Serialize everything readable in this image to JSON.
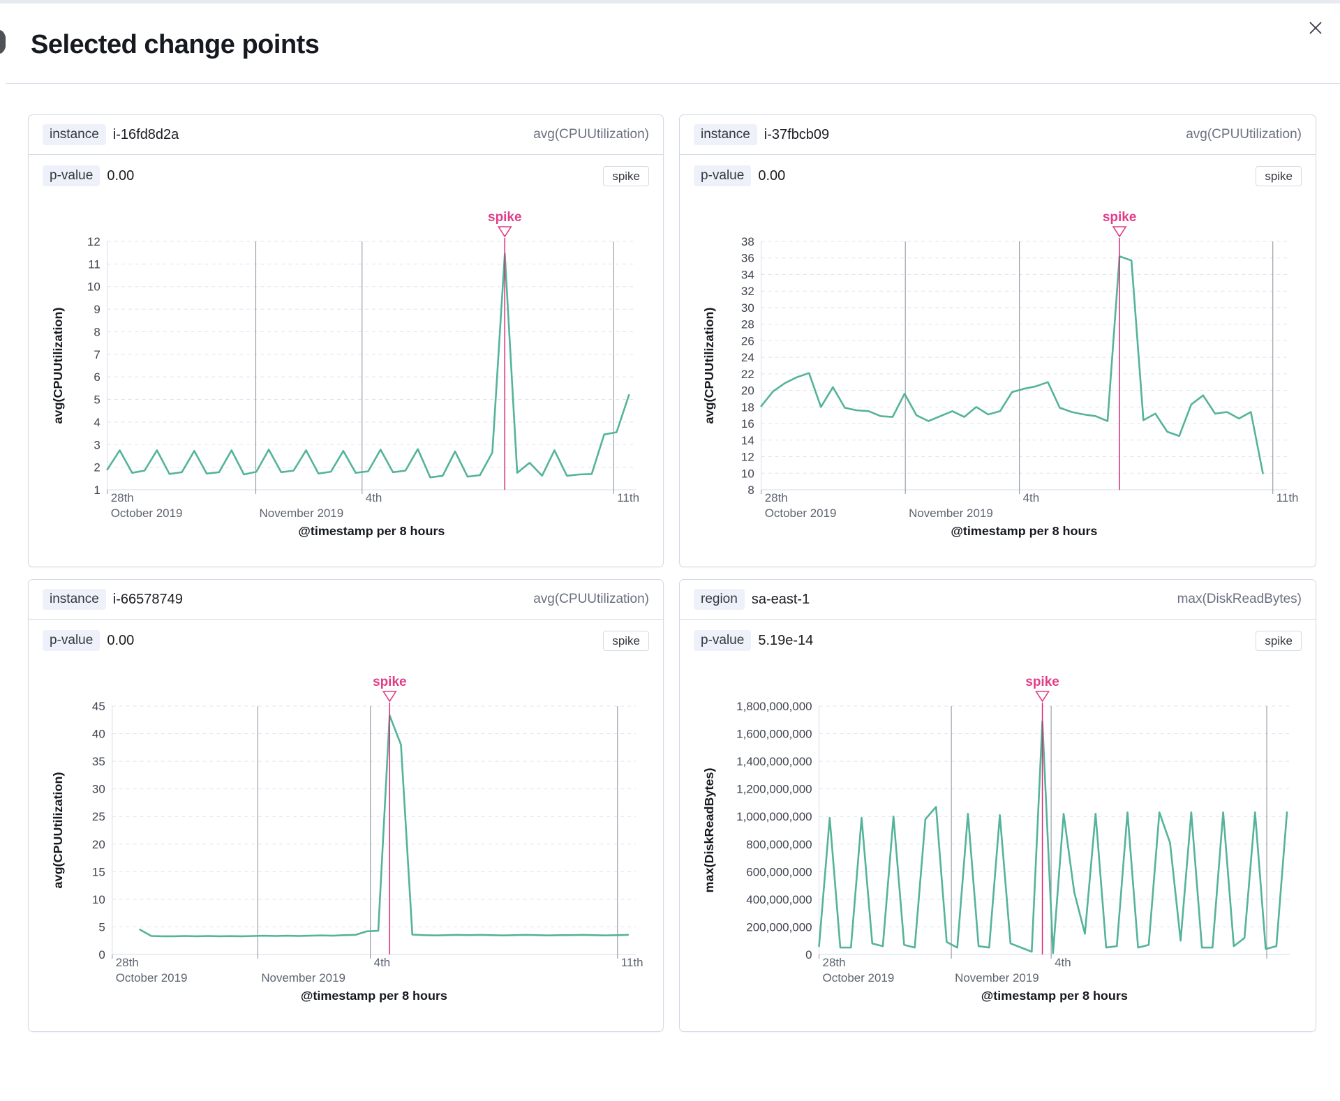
{
  "colors": {
    "series_green": "#54b399",
    "accent_pink": "#e13c88",
    "accent_line": "#dc2878",
    "grid_dashed": "#dde3ee",
    "grid_date": "#878e9a",
    "axis_line": "#d6dce8"
  },
  "modal": {
    "title": "Selected change points",
    "close_icon": "close-x"
  },
  "panels": [
    {
      "key_label": "instance",
      "key_value": "i-16fd8d2a",
      "metric": "avg(CPUUtilization)",
      "p_label": "p-value",
      "p_value": "0.00",
      "change_type": "spike",
      "chart_data": {
        "type": "line",
        "ylabel": "avg(CPUUtilization)",
        "xlabel": "@timestamp per 8 hours",
        "ylim": [
          1,
          12
        ],
        "yticks": [
          1,
          2,
          3,
          4,
          5,
          6,
          7,
          8,
          9,
          10,
          11,
          12
        ],
        "annotation": {
          "label": "spike",
          "index": 32
        },
        "line_span": [
          0,
          0.987
        ],
        "x_ticks": [
          {
            "frac": 0.0,
            "line1": "28th",
            "line2": "October 2019",
            "gridline": false
          },
          {
            "frac": 0.281,
            "line1": "",
            "line2": "November 2019",
            "gridline": true
          },
          {
            "frac": 0.482,
            "line1": "4th",
            "line2": "",
            "gridline": true
          },
          {
            "frac": 0.958,
            "line1": "11th",
            "line2": "",
            "gridline": true
          }
        ],
        "values": [
          1.9,
          2.75,
          1.75,
          1.85,
          2.75,
          1.7,
          1.78,
          2.72,
          1.72,
          1.78,
          2.75,
          1.68,
          1.8,
          2.78,
          1.78,
          1.85,
          2.75,
          1.72,
          1.8,
          2.72,
          1.75,
          1.82,
          2.78,
          1.78,
          1.85,
          2.8,
          1.55,
          1.62,
          2.7,
          1.58,
          1.65,
          2.65,
          11.45,
          1.75,
          2.2,
          1.62,
          2.75,
          1.62,
          1.68,
          1.7,
          3.45,
          3.55,
          5.2
        ]
      }
    },
    {
      "key_label": "instance",
      "key_value": "i-37fbcb09",
      "metric": "avg(CPUUtilization)",
      "p_label": "p-value",
      "p_value": "0.00",
      "change_type": "spike",
      "chart_data": {
        "type": "line",
        "ylabel": "avg(CPUUtilization)",
        "xlabel": "@timestamp per 8 hours",
        "ylim": [
          8,
          38
        ],
        "yticks": [
          8,
          10,
          12,
          14,
          16,
          18,
          20,
          22,
          24,
          26,
          28,
          30,
          32,
          34,
          36,
          38
        ],
        "annotation": {
          "label": "spike",
          "index": 30
        },
        "line_span": [
          0,
          0.954
        ],
        "x_ticks": [
          {
            "frac": 0.0,
            "line1": "28th",
            "line2": "October 2019",
            "gridline": false
          },
          {
            "frac": 0.274,
            "line1": "",
            "line2": "November 2019",
            "gridline": true
          },
          {
            "frac": 0.491,
            "line1": "4th",
            "line2": "",
            "gridline": true
          },
          {
            "frac": 0.973,
            "line1": "11th",
            "line2": "",
            "gridline": true
          }
        ],
        "values": [
          18.1,
          19.9,
          20.9,
          21.6,
          22.1,
          18.0,
          20.4,
          17.9,
          17.6,
          17.5,
          16.9,
          16.8,
          19.6,
          17.0,
          16.3,
          16.9,
          17.5,
          16.8,
          18.0,
          17.1,
          17.5,
          19.8,
          20.2,
          20.5,
          21.0,
          17.9,
          17.4,
          17.1,
          16.9,
          16.3,
          36.2,
          35.7,
          16.4,
          17.2,
          15.0,
          14.5,
          18.3,
          19.4,
          17.2,
          17.4,
          16.6,
          17.4,
          10.0
        ]
      }
    },
    {
      "key_label": "instance",
      "key_value": "i-66578749",
      "metric": "avg(CPUUtilization)",
      "p_label": "p-value",
      "p_value": "0.00",
      "change_type": "spike",
      "chart_data": {
        "type": "line",
        "ylabel": "avg(CPUUtilization)",
        "xlabel": "@timestamp per 8 hours",
        "ylim": [
          0,
          45
        ],
        "yticks": [
          0,
          5,
          10,
          15,
          20,
          25,
          30,
          35,
          40,
          45
        ],
        "annotation": {
          "label": "spike",
          "index": 22
        },
        "line_span": [
          0.053,
          0.985
        ],
        "x_ticks": [
          {
            "frac": 0.0,
            "line1": "28th",
            "line2": "October 2019",
            "gridline": false
          },
          {
            "frac": 0.278,
            "line1": "",
            "line2": "November 2019",
            "gridline": true
          },
          {
            "frac": 0.493,
            "line1": "4th",
            "line2": "",
            "gridline": true
          },
          {
            "frac": 0.965,
            "line1": "11th",
            "line2": "",
            "gridline": true
          }
        ],
        "values": [
          4.5,
          3.35,
          3.3,
          3.3,
          3.35,
          3.3,
          3.35,
          3.3,
          3.32,
          3.3,
          3.35,
          3.4,
          3.35,
          3.4,
          3.35,
          3.4,
          3.45,
          3.4,
          3.5,
          3.55,
          4.2,
          4.3,
          43.3,
          38.0,
          3.6,
          3.5,
          3.45,
          3.5,
          3.55,
          3.5,
          3.55,
          3.5,
          3.45,
          3.5,
          3.55,
          3.5,
          3.45,
          3.5,
          3.5,
          3.55,
          3.5,
          3.45,
          3.5,
          3.55
        ]
      }
    },
    {
      "key_label": "region",
      "key_value": "sa-east-1",
      "metric": "max(DiskReadBytes)",
      "p_label": "p-value",
      "p_value": "5.19e-14",
      "change_type": "spike",
      "chart_data": {
        "type": "line",
        "ylabel": "max(DiskReadBytes)",
        "xlabel": "@timestamp per 8 hours",
        "ylim": [
          0,
          1800000000
        ],
        "yticks": [
          0,
          200000000,
          400000000,
          600000000,
          800000000,
          1000000000,
          1200000000,
          1400000000,
          1600000000,
          1800000000
        ],
        "annotation": {
          "label": "spike",
          "index": 21
        },
        "line_span": [
          0,
          0.994
        ],
        "x_ticks": [
          {
            "frac": 0.0,
            "line1": "28th",
            "line2": "October 2019",
            "gridline": false
          },
          {
            "frac": 0.281,
            "line1": "",
            "line2": "November 2019",
            "gridline": true
          },
          {
            "frac": 0.493,
            "line1": "4th",
            "line2": "",
            "gridline": true
          },
          {
            "frac": 0.951,
            "line1": "",
            "line2": "",
            "gridline": true
          }
        ],
        "values": [
          60000000,
          990000000,
          50000000,
          50000000,
          990000000,
          80000000,
          60000000,
          1000000000,
          70000000,
          50000000,
          980000000,
          1070000000,
          90000000,
          50000000,
          1020000000,
          60000000,
          50000000,
          1010000000,
          80000000,
          50000000,
          20000000,
          1690000000,
          10000000,
          1020000000,
          450000000,
          150000000,
          1020000000,
          50000000,
          60000000,
          1030000000,
          50000000,
          70000000,
          1030000000,
          810000000,
          100000000,
          1030000000,
          50000000,
          50000000,
          1030000000,
          60000000,
          120000000,
          1030000000,
          40000000,
          60000000,
          1030000000
        ]
      }
    }
  ]
}
